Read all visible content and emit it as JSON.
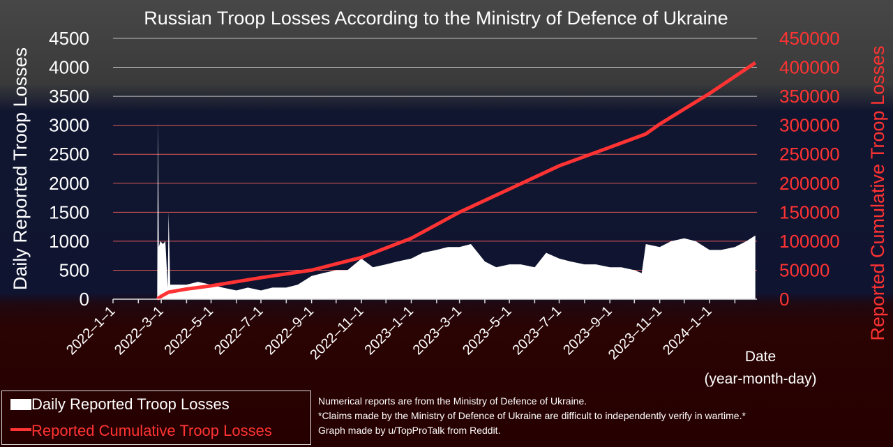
{
  "chart_data": {
    "type": "area+line",
    "title": "Russian Troop Losses According to the Ministry of Defence of Ukraine",
    "xlabel": [
      "Date",
      "(year-month-day)"
    ],
    "ylabel_left": "Daily Reported Troop Losses",
    "ylabel_right": "Reported Cumulative Troop Losses",
    "ylim_left": [
      0,
      4500
    ],
    "ylim_right": [
      0,
      450000
    ],
    "yticks_left": [
      "0",
      "500",
      "1000",
      "1500",
      "2000",
      "2500",
      "3000",
      "3500",
      "4000",
      "4500"
    ],
    "yticks_right": [
      "0",
      "50000",
      "100000",
      "150000",
      "200000",
      "250000",
      "300000",
      "350000",
      "400000",
      "450000"
    ],
    "xlim": [
      "2022-01-01",
      "2024-02-28"
    ],
    "xtick_labels": [
      "2022-1-1",
      "2022-3-1",
      "2022-5-1",
      "2022-7-1",
      "2022-9-1",
      "2022-11-1",
      "2023-1-1",
      "2023-3-1",
      "2023-5-1",
      "2023-7-1",
      "2023-9-1",
      "2023-11-1",
      "2024-1-1"
    ],
    "grid": "horizontal",
    "colors": {
      "daily": "#ffffff",
      "cumulative": "#ff3333",
      "grid": "#e05a5a",
      "right_axis": "#ff3333"
    },
    "series": [
      {
        "name": "Daily Reported Troop Losses",
        "type": "area",
        "axis": "left",
        "points": [
          [
            "2022-02-24",
            0
          ],
          [
            "2022-02-25",
            3100
          ],
          [
            "2022-02-26",
            900
          ],
          [
            "2022-02-28",
            1000
          ],
          [
            "2022-03-03",
            950
          ],
          [
            "2022-03-06",
            1000
          ],
          [
            "2022-03-09",
            200
          ],
          [
            "2022-03-10",
            1500
          ],
          [
            "2022-03-12",
            250
          ],
          [
            "2022-04-01",
            250
          ],
          [
            "2022-04-15",
            300
          ],
          [
            "2022-05-01",
            250
          ],
          [
            "2022-05-15",
            200
          ],
          [
            "2022-06-01",
            150
          ],
          [
            "2022-06-15",
            200
          ],
          [
            "2022-07-01",
            150
          ],
          [
            "2022-07-15",
            200
          ],
          [
            "2022-08-01",
            200
          ],
          [
            "2022-08-15",
            250
          ],
          [
            "2022-09-01",
            400
          ],
          [
            "2022-09-15",
            450
          ],
          [
            "2022-10-01",
            500
          ],
          [
            "2022-10-15",
            500
          ],
          [
            "2022-11-01",
            700
          ],
          [
            "2022-11-15",
            550
          ],
          [
            "2022-12-01",
            600
          ],
          [
            "2022-12-15",
            650
          ],
          [
            "2023-01-01",
            700
          ],
          [
            "2023-01-15",
            800
          ],
          [
            "2023-02-01",
            850
          ],
          [
            "2023-02-15",
            900
          ],
          [
            "2023-03-01",
            900
          ],
          [
            "2023-03-15",
            950
          ],
          [
            "2023-04-01",
            650
          ],
          [
            "2023-04-15",
            550
          ],
          [
            "2023-05-01",
            600
          ],
          [
            "2023-05-15",
            600
          ],
          [
            "2023-06-01",
            550
          ],
          [
            "2023-06-15",
            800
          ],
          [
            "2023-07-01",
            700
          ],
          [
            "2023-07-15",
            650
          ],
          [
            "2023-08-01",
            600
          ],
          [
            "2023-08-15",
            600
          ],
          [
            "2023-09-01",
            550
          ],
          [
            "2023-09-15",
            550
          ],
          [
            "2023-10-01",
            500
          ],
          [
            "2023-10-10",
            450
          ],
          [
            "2023-10-15",
            950
          ],
          [
            "2023-11-01",
            900
          ],
          [
            "2023-11-15",
            1000
          ],
          [
            "2023-12-01",
            1050
          ],
          [
            "2023-12-15",
            1000
          ],
          [
            "2024-01-01",
            850
          ],
          [
            "2024-01-15",
            850
          ],
          [
            "2024-02-01",
            900
          ],
          [
            "2024-02-15",
            1000
          ],
          [
            "2024-02-26",
            1100
          ]
        ]
      },
      {
        "name": "Reported Cumulative Troop Losses",
        "type": "line",
        "axis": "right",
        "points": [
          [
            "2022-02-24",
            0
          ],
          [
            "2022-03-01",
            5000
          ],
          [
            "2022-03-10",
            12000
          ],
          [
            "2022-04-01",
            17500
          ],
          [
            "2022-05-01",
            23000
          ],
          [
            "2022-07-01",
            37000
          ],
          [
            "2022-09-01",
            50000
          ],
          [
            "2022-11-01",
            72000
          ],
          [
            "2023-01-01",
            105000
          ],
          [
            "2023-03-01",
            150000
          ],
          [
            "2023-05-01",
            190000
          ],
          [
            "2023-07-01",
            230000
          ],
          [
            "2023-09-01",
            262000
          ],
          [
            "2023-10-15",
            285000
          ],
          [
            "2023-11-01",
            302000
          ],
          [
            "2024-01-01",
            355000
          ],
          [
            "2024-02-26",
            408000
          ]
        ]
      }
    ]
  },
  "legend": {
    "daily": "Daily Reported Troop Losses",
    "cumulative": "Reported Cumulative Troop Losses"
  },
  "notes": [
    "Numerical reports are from the Ministry of Defence of Ukraine.",
    "*Claims made by the Ministry of Defence of Ukraine are difficult to independently verify in wartime.*",
    "Graph made by u/TopProTalk from Reddit."
  ]
}
